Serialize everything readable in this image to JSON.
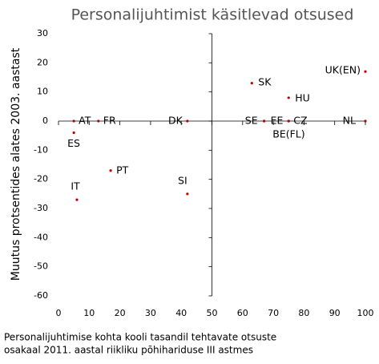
{
  "chart_data": {
    "type": "scatter",
    "title": "Personalijuhtimist käsitlevad otsused",
    "xlabel": [
      "Personalijuhtimise kohta kooli tasandil tehtavate otsuste",
      "osakaal 2011. aastal riikliku põhihariduse III astmes"
    ],
    "ylabel": "Muutus protsentides alates 2003. aastast",
    "labels": [
      "AT",
      "ES",
      "FR",
      "DK",
      "IT",
      "PT",
      "SI",
      "SK",
      "HU",
      "SE",
      "EE",
      "CZ",
      "BE(FL)",
      "UK(EN)",
      "NL"
    ],
    "x": [
      5,
      5,
      13,
      42,
      6,
      17,
      42,
      63,
      75,
      67,
      67,
      75,
      75,
      100,
      100
    ],
    "y": [
      0,
      -4,
      0,
      0,
      -27,
      -17,
      -25,
      13,
      8,
      0,
      0,
      0,
      0,
      17,
      0
    ],
    "color": "#c00000",
    "xlim": [
      0,
      100
    ],
    "xticks": [
      0,
      10,
      20,
      30,
      40,
      50,
      60,
      70,
      80,
      90,
      100
    ],
    "ylim": [
      -60,
      30
    ],
    "yticks": [
      -60,
      -50,
      -40,
      -30,
      -20,
      -10,
      0,
      10,
      20,
      30
    ],
    "cross": [
      50,
      0
    ]
  }
}
